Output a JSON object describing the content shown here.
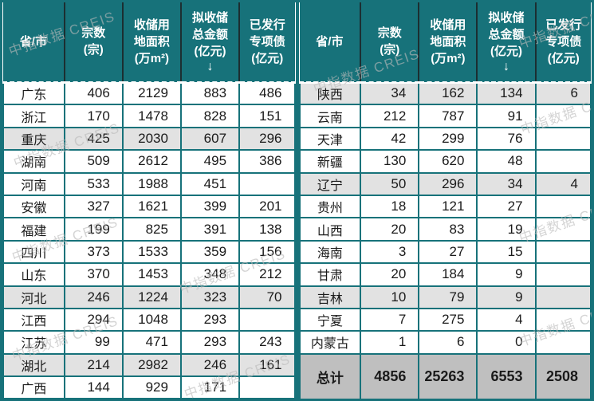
{
  "watermark": {
    "text": "中指数据 CREIS"
  },
  "colors": {
    "teal": "#17727a",
    "row_highlight": "#e2e2e2",
    "total_row_bg": "#bfbfbf",
    "header_text": "#ffffff",
    "body_text": "#1a1a1a"
  },
  "table": {
    "columns": [
      {
        "lines": [
          "省/市"
        ]
      },
      {
        "lines": [
          "宗数",
          "(宗)"
        ]
      },
      {
        "lines": [
          "收储用",
          "地面积",
          "(万m²)"
        ]
      },
      {
        "lines": [
          "拟收储",
          "总金额",
          "(亿元)",
          "↓"
        ]
      },
      {
        "lines": [
          "已发行",
          "专项债",
          "(亿元)"
        ]
      }
    ],
    "left_rows": [
      {
        "province": "广东",
        "values": [
          "406",
          "2129",
          "883",
          "486"
        ],
        "highlight": false
      },
      {
        "province": "浙江",
        "values": [
          "170",
          "1478",
          "828",
          "151"
        ],
        "highlight": false
      },
      {
        "province": "重庆",
        "values": [
          "425",
          "2030",
          "607",
          "296"
        ],
        "highlight": true
      },
      {
        "province": "湖南",
        "values": [
          "509",
          "2612",
          "495",
          "386"
        ],
        "highlight": false
      },
      {
        "province": "河南",
        "values": [
          "533",
          "1988",
          "451",
          ""
        ],
        "highlight": false
      },
      {
        "province": "安徽",
        "values": [
          "327",
          "1621",
          "399",
          "201"
        ],
        "highlight": false
      },
      {
        "province": "福建",
        "values": [
          "199",
          "825",
          "391",
          "138"
        ],
        "highlight": false
      },
      {
        "province": "四川",
        "values": [
          "373",
          "1533",
          "359",
          "156"
        ],
        "highlight": false
      },
      {
        "province": "山东",
        "values": [
          "370",
          "1453",
          "348",
          "212"
        ],
        "highlight": false
      },
      {
        "province": "河北",
        "values": [
          "246",
          "1224",
          "323",
          "70"
        ],
        "highlight": true
      },
      {
        "province": "江西",
        "values": [
          "294",
          "1048",
          "293",
          ""
        ],
        "highlight": false
      },
      {
        "province": "江苏",
        "values": [
          "99",
          "471",
          "293",
          "243"
        ],
        "highlight": false
      },
      {
        "province": "湖北",
        "values": [
          "214",
          "2982",
          "246",
          "161"
        ],
        "highlight": true
      },
      {
        "province": "广西",
        "values": [
          "144",
          "929",
          "171",
          ""
        ],
        "highlight": false
      }
    ],
    "right_rows": [
      {
        "province": "陕西",
        "values": [
          "34",
          "162",
          "134",
          "6"
        ],
        "highlight": true
      },
      {
        "province": "云南",
        "values": [
          "212",
          "787",
          "91",
          ""
        ],
        "highlight": false
      },
      {
        "province": "天津",
        "values": [
          "42",
          "299",
          "76",
          ""
        ],
        "highlight": false
      },
      {
        "province": "新疆",
        "values": [
          "130",
          "620",
          "48",
          ""
        ],
        "highlight": false
      },
      {
        "province": "辽宁",
        "values": [
          "50",
          "296",
          "34",
          "4"
        ],
        "highlight": true
      },
      {
        "province": "贵州",
        "values": [
          "18",
          "121",
          "27",
          ""
        ],
        "highlight": false
      },
      {
        "province": "山西",
        "values": [
          "20",
          "83",
          "19",
          ""
        ],
        "highlight": false
      },
      {
        "province": "海南",
        "values": [
          "3",
          "27",
          "15",
          ""
        ],
        "highlight": false
      },
      {
        "province": "甘肃",
        "values": [
          "20",
          "184",
          "9",
          ""
        ],
        "highlight": false
      },
      {
        "province": "吉林",
        "values": [
          "10",
          "79",
          "9",
          ""
        ],
        "highlight": true
      },
      {
        "province": "宁夏",
        "values": [
          "7",
          "275",
          "4",
          ""
        ],
        "highlight": false
      },
      {
        "province": "内蒙古",
        "values": [
          "1",
          "6",
          "0",
          ""
        ],
        "highlight": false
      }
    ],
    "total_row": {
      "label": "总计",
      "values": [
        "4856",
        "25263",
        "6553",
        "2508"
      ]
    }
  },
  "chart_data": {
    "type": "table",
    "columns": [
      "省/市",
      "宗数(宗)",
      "收储用地面积(万m²)",
      "拟收储总金额(亿元)↓",
      "已发行专项债(亿元)"
    ],
    "rows": [
      [
        "广东",
        406,
        2129,
        883,
        486
      ],
      [
        "浙江",
        170,
        1478,
        828,
        151
      ],
      [
        "重庆",
        425,
        2030,
        607,
        296
      ],
      [
        "湖南",
        509,
        2612,
        495,
        386
      ],
      [
        "河南",
        533,
        1988,
        451,
        null
      ],
      [
        "安徽",
        327,
        1621,
        399,
        201
      ],
      [
        "福建",
        199,
        825,
        391,
        138
      ],
      [
        "四川",
        373,
        1533,
        359,
        156
      ],
      [
        "山东",
        370,
        1453,
        348,
        212
      ],
      [
        "河北",
        246,
        1224,
        323,
        70
      ],
      [
        "江西",
        294,
        1048,
        293,
        null
      ],
      [
        "江苏",
        99,
        471,
        293,
        243
      ],
      [
        "湖北",
        214,
        2982,
        246,
        161
      ],
      [
        "广西",
        144,
        929,
        171,
        null
      ],
      [
        "陕西",
        34,
        162,
        134,
        6
      ],
      [
        "云南",
        212,
        787,
        91,
        null
      ],
      [
        "天津",
        42,
        299,
        76,
        null
      ],
      [
        "新疆",
        130,
        620,
        48,
        null
      ],
      [
        "辽宁",
        50,
        296,
        34,
        4
      ],
      [
        "贵州",
        18,
        121,
        27,
        null
      ],
      [
        "山西",
        20,
        83,
        19,
        null
      ],
      [
        "海南",
        3,
        27,
        15,
        null
      ],
      [
        "甘肃",
        20,
        184,
        9,
        null
      ],
      [
        "吉林",
        10,
        79,
        9,
        null
      ],
      [
        "宁夏",
        7,
        275,
        4,
        null
      ],
      [
        "内蒙古",
        1,
        6,
        0,
        null
      ]
    ],
    "total": [
      "总计",
      4856,
      25263,
      6553,
      2508
    ],
    "highlighted_rows": [
      "重庆",
      "河北",
      "湖北",
      "陕西",
      "辽宁",
      "吉林"
    ],
    "layout": "two side-by-side panels of 14 and 12 data rows; total row spans bottom of right panel; down-arrow marks descending sort on 拟收储总金额"
  }
}
